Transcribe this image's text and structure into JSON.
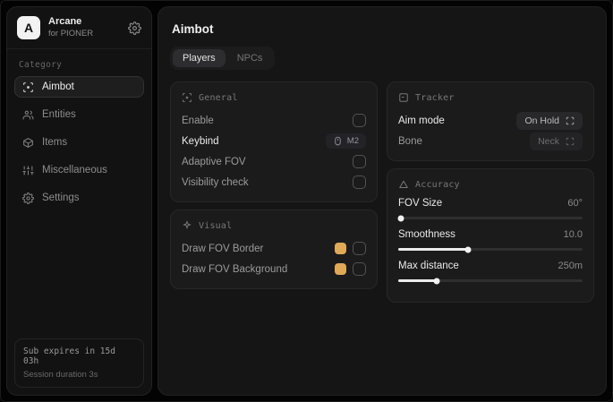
{
  "colors": {
    "accent_swatch": "#dfa958"
  },
  "sidebar": {
    "brand": {
      "initial": "A",
      "name": "Arcane",
      "subtitle": "for PIONER"
    },
    "category_label": "Category",
    "items": [
      {
        "label": "Aimbot",
        "icon": "crosshair-icon",
        "selected": true
      },
      {
        "label": "Entities",
        "icon": "users-icon",
        "selected": false
      },
      {
        "label": "Items",
        "icon": "box-icon",
        "selected": false
      },
      {
        "label": "Miscellaneous",
        "icon": "sliders-icon",
        "selected": false
      },
      {
        "label": "Settings",
        "icon": "gear-icon",
        "selected": false
      }
    ],
    "footer": {
      "line1": "Sub expires in 15d 03h",
      "line2": "Session duration 3s"
    }
  },
  "main": {
    "title": "Aimbot",
    "tabs": [
      {
        "label": "Players",
        "selected": true
      },
      {
        "label": "NPCs",
        "selected": false
      }
    ],
    "sections": {
      "general": {
        "title": "General",
        "rows": [
          {
            "label": "Enable",
            "control": "checkbox",
            "checked": false
          },
          {
            "label": "Keybind",
            "control": "keybind",
            "value": "M2"
          },
          {
            "label": "Adaptive FOV",
            "control": "checkbox",
            "checked": false
          },
          {
            "label": "Visibility check",
            "control": "checkbox",
            "checked": false
          }
        ]
      },
      "visual": {
        "title": "Visual",
        "rows": [
          {
            "label": "Draw FOV Border",
            "control": "color-checkbox",
            "color": "#dfa958",
            "checked": false
          },
          {
            "label": "Draw FOV Background",
            "control": "color-checkbox",
            "color": "#dfa958",
            "checked": false
          }
        ]
      },
      "tracker": {
        "title": "Tracker",
        "rows": [
          {
            "label": "Aim mode",
            "value": "On Hold"
          },
          {
            "label": "Bone",
            "value": "Neck"
          }
        ]
      },
      "accuracy": {
        "title": "Accuracy",
        "sliders": [
          {
            "label": "FOV Size",
            "value": "60°",
            "percent": 1.5
          },
          {
            "label": "Smoothness",
            "value": "10.0",
            "percent": 38
          },
          {
            "label": "Max distance",
            "value": "250m",
            "percent": 21
          }
        ]
      }
    }
  }
}
